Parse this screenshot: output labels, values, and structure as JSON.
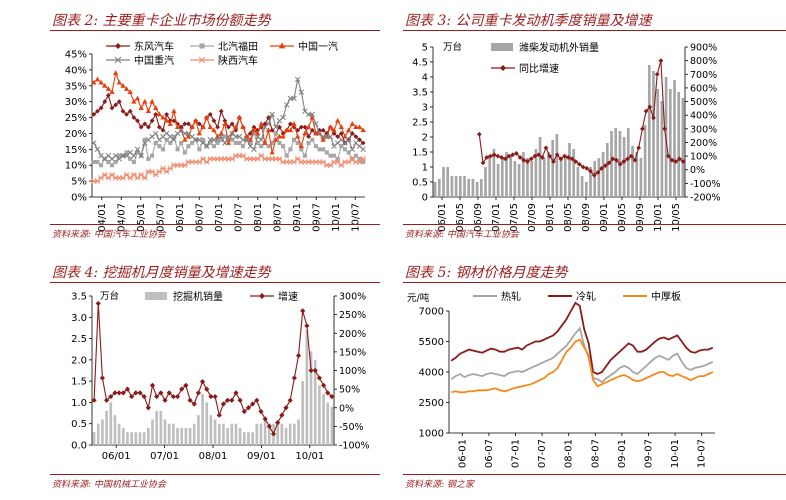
{
  "chart_data": [
    {
      "id": "p1",
      "type": "line",
      "title": "图表 2: 主要重卡企业市场份额走势",
      "source": "资料来源: 中国汽车工业协会",
      "y": {
        "min": 0,
        "max": 45,
        "ticks": [
          0,
          5,
          10,
          15,
          20,
          25,
          30,
          35,
          40,
          45
        ],
        "format": "pct"
      },
      "x_ticks": [
        "04/01",
        "04/07",
        "05/01",
        "05/07",
        "06/01",
        "06/07",
        "07/01",
        "07/07",
        "08/01",
        "08/07",
        "09/01",
        "09/07",
        "10/01",
        "10/07"
      ],
      "legend": [
        "东风汽车",
        "北汽福田",
        "中国一汽",
        "中国重汽",
        "陕西汽车"
      ],
      "series": [
        {
          "name": "东风汽车",
          "color": "#8b1a1a",
          "marker": "diamond",
          "values": [
            26,
            27,
            28,
            30,
            32,
            28,
            29,
            30,
            27,
            26,
            27,
            25,
            24,
            22,
            23,
            22,
            24,
            26,
            22,
            21,
            26,
            24,
            24,
            23,
            22,
            23,
            23,
            22,
            24,
            23,
            22,
            25,
            26,
            24,
            22,
            27,
            24,
            22,
            23,
            21,
            25,
            22,
            19,
            20,
            22,
            21,
            22,
            23,
            25,
            21,
            20,
            22,
            20,
            21,
            23,
            22,
            21,
            22,
            22,
            19,
            21,
            20,
            21,
            21,
            20,
            22,
            20,
            19,
            20,
            17,
            18,
            20,
            19,
            18,
            17
          ]
        },
        {
          "name": "北汽福田",
          "color": "#a6a6a6",
          "marker": "square",
          "values": [
            11,
            11,
            10,
            12,
            11,
            10,
            11,
            13,
            13,
            14,
            12,
            11,
            14,
            13,
            18,
            12,
            13,
            17,
            16,
            15,
            18,
            17,
            19,
            15,
            17,
            14,
            16,
            17,
            18,
            15,
            18,
            16,
            17,
            16,
            17,
            18,
            19,
            18,
            18,
            17,
            17,
            16,
            18,
            17,
            20,
            17,
            16,
            17,
            16,
            17,
            20,
            17,
            16,
            13,
            15,
            18,
            17,
            15,
            13,
            17,
            18,
            16,
            15,
            15,
            14,
            13,
            13,
            12,
            16,
            15,
            14,
            12,
            13,
            12,
            11
          ]
        },
        {
          "name": "中国一汽",
          "color": "#e8400c",
          "marker": "triangle",
          "values": [
            36,
            37,
            36,
            35,
            34,
            33,
            39,
            36,
            35,
            34,
            33,
            30,
            31,
            28,
            30,
            27,
            30,
            28,
            26,
            25,
            24,
            23,
            27,
            22,
            21,
            18,
            19,
            22,
            24,
            20,
            22,
            25,
            22,
            21,
            19,
            20,
            23,
            17,
            20,
            22,
            25,
            22,
            19,
            18,
            21,
            20,
            23,
            17,
            21,
            14,
            18,
            19,
            19,
            21,
            21,
            23,
            19,
            16,
            20,
            22,
            25,
            20,
            20,
            18,
            19,
            22,
            21,
            24,
            22,
            19,
            21,
            23,
            22,
            22,
            21
          ]
        },
        {
          "name": "中国重汽",
          "color": "#7f7f7f",
          "marker": "x",
          "values": [
            17,
            15,
            13,
            12,
            13,
            12,
            13,
            12,
            13,
            13,
            14,
            13,
            15,
            13,
            17,
            18,
            19,
            20,
            18,
            19,
            20,
            19,
            18,
            20,
            21,
            20,
            20,
            19,
            18,
            18,
            17,
            16,
            18,
            18,
            18,
            19,
            17,
            19,
            20,
            19,
            19,
            18,
            18,
            16,
            15,
            19,
            18,
            22,
            23,
            26,
            22,
            24,
            25,
            29,
            31,
            31,
            37,
            33,
            27,
            26,
            26,
            23,
            20,
            19,
            19,
            19,
            16,
            17,
            18,
            17,
            18,
            15,
            17,
            16,
            15
          ]
        },
        {
          "name": "陕西汽车",
          "color": "#f28c6e",
          "marker": "asterisk",
          "values": [
            5,
            5,
            6,
            7,
            6,
            7,
            6,
            6,
            6,
            7,
            6,
            7,
            6,
            7,
            6,
            8,
            8,
            7,
            8,
            9,
            8,
            9,
            10,
            10,
            10,
            10,
            11,
            11,
            11,
            11,
            12,
            11,
            12,
            12,
            12,
            12,
            12,
            12,
            12,
            13,
            13,
            13,
            12,
            12,
            12,
            12,
            13,
            12,
            12,
            12,
            12,
            12,
            11,
            11,
            11,
            11,
            12,
            11,
            11,
            11,
            11,
            11,
            11,
            11,
            10,
            10,
            11,
            11,
            10,
            11,
            11,
            12,
            11,
            11,
            12
          ]
        }
      ]
    },
    {
      "id": "p2",
      "type": "bar+line",
      "title": "图表 3: 公司重卡发动机季度销量及增速",
      "source": "资料来源: 中国汽车工业协会",
      "left_unit": "万台",
      "y": {
        "min": 0,
        "max": 5,
        "ticks": [
          0,
          0.5,
          1,
          1.5,
          2,
          2.5,
          3,
          3.5,
          4,
          4.5,
          5
        ],
        "format": "num"
      },
      "y2": {
        "min": -200,
        "max": 900,
        "ticks": [
          -200,
          -100,
          0,
          100,
          200,
          300,
          400,
          500,
          600,
          700,
          800,
          900
        ],
        "format": "pct"
      },
      "x_ticks": [
        "06/01",
        "06/05",
        "06/09",
        "07/01",
        "07/05",
        "07/09",
        "08/01",
        "08/05",
        "08/09",
        "09/01",
        "09/05",
        "09/09",
        "10/01",
        "10/05"
      ],
      "legend": [
        "潍柴发动机外销量",
        "同比增速"
      ],
      "bars": {
        "name": "潍柴发动机外销量",
        "color": "#a6a6a6",
        "values": [
          0.5,
          0.6,
          1.0,
          1.0,
          0.7,
          0.7,
          0.7,
          0.7,
          0.6,
          0.6,
          0.5,
          0.6,
          1.0,
          1.4,
          1.6,
          1.1,
          1.3,
          1.5,
          1.4,
          1.2,
          1.1,
          1.5,
          1.3,
          1.2,
          1.6,
          2.0,
          1.3,
          1.5,
          1.9,
          2.1,
          1.3,
          1.4,
          1.8,
          1.6,
          1.0,
          0.7,
          0.5,
          1.0,
          1.2,
          1.3,
          1.5,
          1.8,
          2.2,
          2.3,
          2.2,
          2.0,
          2.3,
          1.7,
          1.5,
          1.3,
          2.4,
          4.4,
          4.2,
          3.6,
          3.2,
          4.0,
          3.6,
          3.9,
          3.5,
          3.3
        ]
      },
      "line": {
        "name": "同比增速",
        "color": "#8b1a1a",
        "marker": "diamond",
        "values": [
          null,
          null,
          null,
          null,
          null,
          null,
          null,
          null,
          null,
          null,
          null,
          null,
          260,
          50,
          90,
          100,
          110,
          100,
          90,
          80,
          100,
          110,
          120,
          90,
          70,
          60,
          80,
          100,
          110,
          90,
          160,
          100,
          60,
          110,
          80,
          100,
          90,
          80,
          60,
          40,
          20,
          10,
          -10,
          -40,
          -20,
          10,
          30,
          50,
          80,
          70,
          40,
          60,
          80,
          100,
          70,
          160,
          300,
          430,
          460,
          380,
          700,
          800,
          300,
          100,
          70,
          60,
          80,
          60
        ]
      }
    },
    {
      "id": "p3",
      "type": "bar+line",
      "title": "图表 4: 挖掘机月度销量及增速走势",
      "source": "资料来源: 中国机械工业协会",
      "left_unit": "万台",
      "y": {
        "min": 0,
        "max": 3.5,
        "ticks": [
          0,
          0.5,
          1.0,
          1.5,
          2.0,
          2.5,
          3.0,
          3.5
        ],
        "format": "fixed1"
      },
      "y2": {
        "min": -100,
        "max": 300,
        "ticks": [
          -100,
          -50,
          0,
          50,
          100,
          150,
          200,
          250,
          300
        ],
        "format": "pct"
      },
      "x_ticks": [
        "06/01",
        "07/01",
        "08/01",
        "09/01",
        "10/01"
      ],
      "legend": [
        "挖掘机销量",
        "增速"
      ],
      "bars": {
        "name": "挖掘机销量",
        "color": "#bfbfbf",
        "values": [
          0.3,
          0.5,
          0.6,
          0.8,
          1.0,
          0.7,
          0.5,
          0.4,
          0.3,
          0.3,
          0.3,
          0.3,
          0.3,
          0.4,
          0.6,
          0.8,
          0.8,
          0.6,
          0.5,
          0.5,
          0.4,
          0.4,
          0.4,
          0.4,
          0.5,
          0.7,
          1.2,
          1.0,
          0.7,
          0.6,
          0.5,
          0.5,
          0.4,
          0.5,
          0.5,
          0.4,
          0.3,
          0.3,
          0.3,
          0.5,
          0.5,
          0.6,
          0.5,
          0.5,
          0.5,
          0.5,
          0.4,
          0.5,
          0.5,
          0.6,
          1.5,
          2.7,
          2.2,
          2.0,
          1.4,
          1.2,
          1.0,
          0.9
        ]
      },
      "line": {
        "name": "增速",
        "color": "#8b1a1a",
        "marker": "diamond",
        "values": [
          20,
          280,
          80,
          20,
          30,
          40,
          40,
          40,
          50,
          30,
          40,
          40,
          30,
          0,
          60,
          30,
          40,
          20,
          40,
          30,
          30,
          50,
          60,
          20,
          10,
          40,
          70,
          50,
          30,
          30,
          -20,
          10,
          20,
          20,
          40,
          20,
          -10,
          0,
          10,
          20,
          -10,
          -30,
          -50,
          -70,
          -40,
          -20,
          0,
          20,
          80,
          140,
          260,
          220,
          100,
          100,
          80,
          60,
          40,
          30
        ]
      }
    },
    {
      "id": "p4",
      "type": "line",
      "title": "图表 5: 钢材价格月度走势",
      "source": "资料来源: 钢之家",
      "left_unit": "元/吨",
      "y": {
        "min": 1000,
        "max": 7000,
        "ticks": [
          1000,
          2500,
          4000,
          5500,
          7000
        ],
        "format": "num"
      },
      "x_ticks": [
        "06-01",
        "06-07",
        "07-01",
        "07-07",
        "08-01",
        "08-07",
        "09-01",
        "09-07",
        "10-01",
        "10-07"
      ],
      "legend": [
        "热轧",
        "冷轧",
        "中厚板"
      ],
      "series": [
        {
          "name": "热轧",
          "color": "#a6a6a6",
          "marker": "none",
          "values": [
            3650,
            3800,
            3900,
            3750,
            3850,
            3900,
            3850,
            3800,
            3900,
            3950,
            3900,
            3850,
            3800,
            3950,
            4000,
            4050,
            4000,
            4100,
            4200,
            4300,
            4400,
            4500,
            4600,
            4700,
            4900,
            5100,
            5300,
            5600,
            5900,
            6150,
            5300,
            4700,
            3700,
            3650,
            3500,
            3700,
            3850,
            4000,
            4200,
            4300,
            4200,
            4000,
            3900,
            4100,
            4300,
            4500,
            4700,
            4800,
            4700,
            4600,
            4800,
            4900,
            4500,
            4200,
            4100,
            4200,
            4250,
            4300,
            4400,
            4500
          ]
        },
        {
          "name": "冷轧",
          "color": "#8b1a1a",
          "marker": "none",
          "values": [
            4550,
            4700,
            4900,
            5000,
            5100,
            5050,
            5000,
            4950,
            5050,
            5150,
            5100,
            5000,
            5000,
            5100,
            5150,
            5200,
            5100,
            5300,
            5400,
            5500,
            5500,
            5600,
            5700,
            5800,
            6000,
            6300,
            6600,
            7000,
            7400,
            7250,
            6100,
            5400,
            4000,
            3900,
            4000,
            4300,
            4600,
            4800,
            5000,
            5200,
            5400,
            5300,
            5000,
            5000,
            5100,
            5300,
            5500,
            5650,
            5700,
            5600,
            5700,
            5800,
            5500,
            5200,
            5000,
            4950,
            5050,
            5100,
            5100,
            5200
          ]
        },
        {
          "name": "中厚板",
          "color": "#f28a1e",
          "marker": "none",
          "values": [
            3000,
            3050,
            3000,
            3000,
            3050,
            3050,
            3100,
            3100,
            3100,
            3150,
            3200,
            3100,
            3050,
            3100,
            3200,
            3250,
            3300,
            3350,
            3400,
            3500,
            3600,
            3700,
            3900,
            4000,
            4200,
            4600,
            5000,
            5200,
            5500,
            5600,
            5200,
            4800,
            3600,
            3300,
            3400,
            3500,
            3600,
            3700,
            3800,
            3850,
            3750,
            3600,
            3550,
            3600,
            3700,
            3800,
            3900,
            4000,
            4000,
            3850,
            3800,
            3900,
            3800,
            3700,
            3600,
            3700,
            3800,
            3800,
            3900,
            4000
          ]
        }
      ]
    }
  ]
}
